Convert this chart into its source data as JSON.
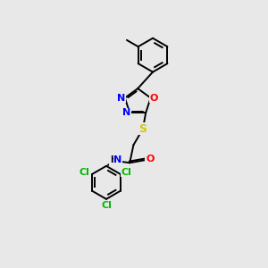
{
  "background_color": "#e8e8e8",
  "bond_color": "#000000",
  "atom_colors": {
    "N": "#0000ff",
    "O": "#ff0000",
    "S": "#cccc00",
    "Cl": "#00bb00",
    "H": "#000000",
    "C": "#000000"
  },
  "font_size": 8,
  "lw": 1.4,
  "title": ""
}
